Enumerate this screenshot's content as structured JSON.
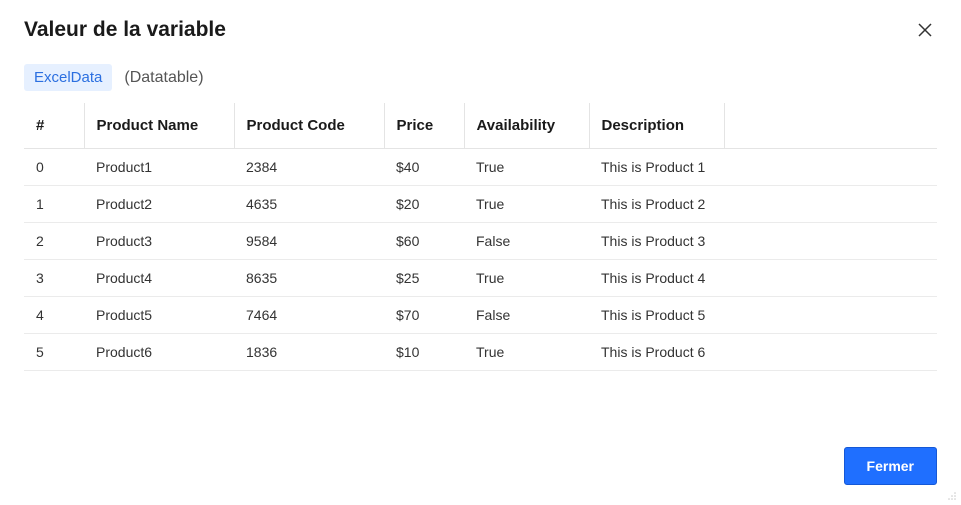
{
  "dialog": {
    "title": "Valeur de la variable",
    "variable_name": "ExcelData",
    "variable_type": "(Datatable)",
    "close_button_label": "Close"
  },
  "table": {
    "columns": [
      "#",
      "Product Name",
      "Product Code",
      "Price",
      "Availability",
      "Description"
    ],
    "rows": [
      {
        "idx": "0",
        "name": "Product1",
        "code": "2384",
        "price": "$40",
        "availability": "True",
        "description": "This is Product 1"
      },
      {
        "idx": "1",
        "name": "Product2",
        "code": "4635",
        "price": "$20",
        "availability": "True",
        "description": "This is Product 2"
      },
      {
        "idx": "2",
        "name": "Product3",
        "code": "9584",
        "price": "$60",
        "availability": "False",
        "description": "This is Product 3"
      },
      {
        "idx": "3",
        "name": "Product4",
        "code": "8635",
        "price": "$25",
        "availability": "True",
        "description": "This is Product 4"
      },
      {
        "idx": "4",
        "name": "Product5",
        "code": "7464",
        "price": "$70",
        "availability": "False",
        "description": "This is Product 5"
      },
      {
        "idx": "5",
        "name": "Product6",
        "code": "1836",
        "price": "$10",
        "availability": "True",
        "description": "This is Product 6"
      }
    ]
  },
  "footer": {
    "close_label": "Fermer"
  },
  "colors": {
    "chip_bg": "#e6f0ff",
    "chip_text": "#2b6fe0",
    "primary_btn_bg": "#1f6fff",
    "primary_btn_border": "#1558d6",
    "border": "#e4e4e4"
  }
}
